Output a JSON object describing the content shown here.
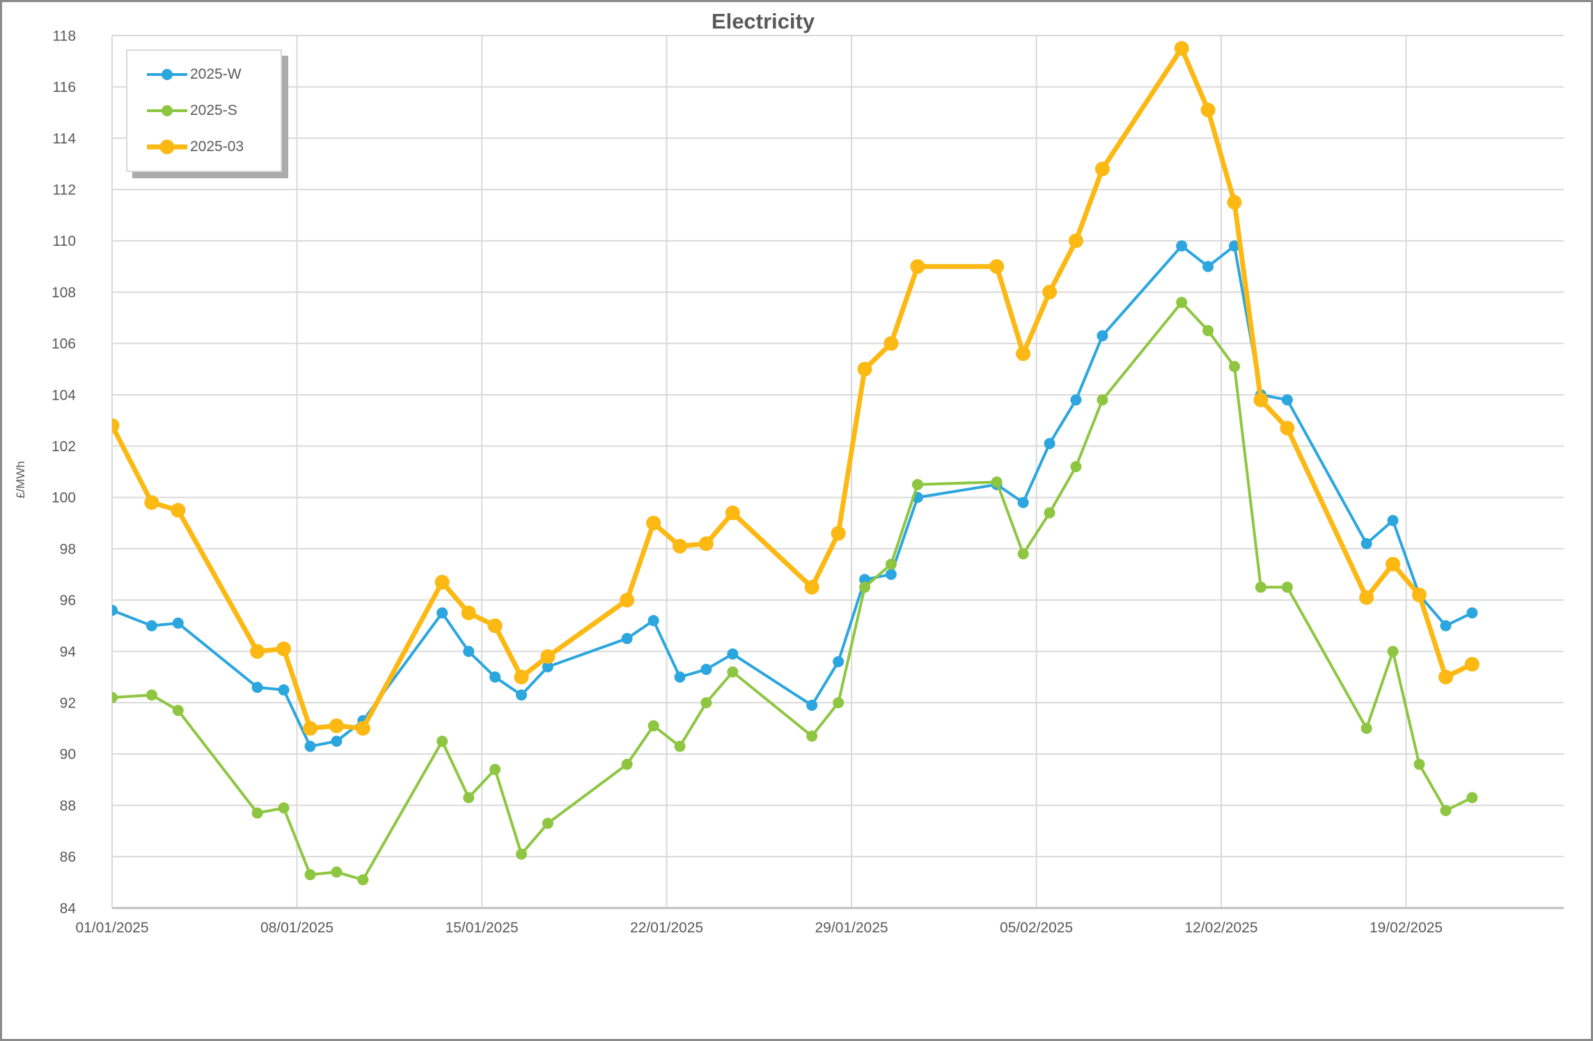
{
  "window": {
    "frame_color": "#8A8A8A",
    "background_color": "#FFFFFF"
  },
  "chart_data": {
    "type": "line",
    "title": "Electricity",
    "xlabel": "",
    "ylabel": "£/MWh",
    "grid": true,
    "legend_position": "top-left",
    "colors": {
      "gridline": "#D9D9D9",
      "axis_line": "#BFBFBF",
      "text": "#595959"
    },
    "x_axis": {
      "tick_labels": [
        "01/01/2025",
        "08/01/2025",
        "15/01/2025",
        "22/01/2025",
        "29/01/2025",
        "05/02/2025",
        "12/02/2025",
        "19/02/2025"
      ],
      "tick_day_offsets": [
        0,
        7,
        14,
        21,
        28,
        35,
        42,
        49
      ],
      "max_day": 54.97
    },
    "y_axis": {
      "min": 84,
      "max": 118,
      "tick_step": 2,
      "tick_labels": [
        "84",
        "86",
        "88",
        "90",
        "92",
        "94",
        "96",
        "98",
        "100",
        "102",
        "104",
        "106",
        "108",
        "110",
        "112",
        "114",
        "116",
        "118"
      ]
    },
    "dates": [
      "01/01/2025",
      "02/01/2025",
      "03/01/2025",
      "06/01/2025",
      "07/01/2025",
      "08/01/2025",
      "09/01/2025",
      "10/01/2025",
      "13/01/2025",
      "14/01/2025",
      "15/01/2025",
      "16/01/2025",
      "17/01/2025",
      "20/01/2025",
      "21/01/2025",
      "22/01/2025",
      "23/01/2025",
      "24/01/2025",
      "27/01/2025",
      "28/01/2025",
      "29/01/2025",
      "30/01/2025",
      "31/01/2025",
      "03/02/2025",
      "04/02/2025",
      "05/02/2025",
      "06/02/2025",
      "07/02/2025",
      "10/02/2025",
      "11/02/2025",
      "12/02/2025",
      "13/02/2025",
      "14/02/2025",
      "17/02/2025",
      "18/02/2025",
      "19/02/2025",
      "20/02/2025",
      "21/02/2025"
    ],
    "day_offsets": [
      0,
      1.5,
      2.5,
      5.5,
      6.5,
      7.5,
      8.5,
      9.5,
      12.5,
      13.5,
      14.5,
      15.5,
      16.5,
      19.5,
      20.5,
      21.5,
      22.5,
      23.5,
      26.5,
      27.5,
      28.5,
      29.5,
      30.5,
      33.5,
      34.5,
      35.5,
      36.5,
      37.5,
      40.5,
      41.5,
      42.5,
      43.5,
      44.5,
      47.5,
      48.5,
      49.5,
      50.5,
      51.5
    ],
    "series": [
      {
        "name": "2025-W",
        "color": "#2BA6DE",
        "line_width": 4,
        "marker_radius": 8,
        "values": [
          95.6,
          95.0,
          95.1,
          92.6,
          92.5,
          90.3,
          90.5,
          91.3,
          95.5,
          94.0,
          93.0,
          92.3,
          93.4,
          94.5,
          95.2,
          93.0,
          93.3,
          93.9,
          91.9,
          93.6,
          96.8,
          97.0,
          100.0,
          100.5,
          99.8,
          102.1,
          103.8,
          106.3,
          109.8,
          109.0,
          109.8,
          104.0,
          103.8,
          98.2,
          99.1,
          96.2,
          95.0,
          95.5
        ]
      },
      {
        "name": "2025-S",
        "color": "#8EC641",
        "line_width": 4,
        "marker_radius": 8,
        "values": [
          92.2,
          92.3,
          91.7,
          87.7,
          87.9,
          85.3,
          85.4,
          85.1,
          90.5,
          88.3,
          89.4,
          86.1,
          87.3,
          89.6,
          91.1,
          90.3,
          92.0,
          93.2,
          90.7,
          92.0,
          96.5,
          97.4,
          100.5,
          100.6,
          97.8,
          99.4,
          101.2,
          103.8,
          107.6,
          106.5,
          105.1,
          96.5,
          96.5,
          91.0,
          94.0,
          89.6,
          87.8,
          88.3
        ]
      },
      {
        "name": "2025-03",
        "color": "#FCB813",
        "line_width": 7,
        "marker_radius": 10.5,
        "values": [
          102.8,
          99.8,
          99.5,
          94.0,
          94.1,
          91.0,
          91.1,
          91.0,
          96.7,
          95.5,
          95.0,
          93.0,
          93.8,
          96.0,
          99.0,
          98.1,
          98.2,
          99.4,
          96.5,
          98.6,
          105.0,
          106.0,
          109.0,
          109.0,
          105.6,
          108.0,
          110.0,
          112.8,
          117.5,
          115.1,
          111.5,
          103.8,
          102.7,
          96.1,
          97.4,
          96.2,
          93.0,
          93.5
        ]
      }
    ]
  },
  "legend": {
    "items": [
      {
        "label": "2025-W"
      },
      {
        "label": "2025-S"
      },
      {
        "label": "2025-03"
      }
    ]
  }
}
